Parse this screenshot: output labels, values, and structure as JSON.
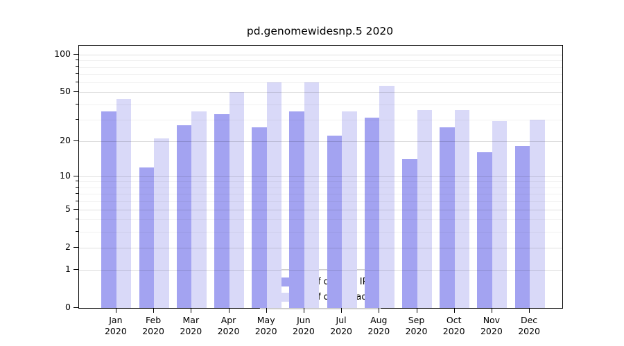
{
  "title": "pd.genomewidesnp.5 2020",
  "chart_data": {
    "type": "bar",
    "title": "pd.genomewidesnp.5 2020",
    "scale": "log1p",
    "categories": [
      "Jan 2020",
      "Feb 2020",
      "Mar 2020",
      "Apr 2020",
      "May 2020",
      "Jun 2020",
      "Jul 2020",
      "Aug 2020",
      "Sep 2020",
      "Oct 2020",
      "Nov 2020",
      "Dec 2020"
    ],
    "series": [
      {
        "name": "Nb of distinct IPs",
        "color": "#a3a3f1",
        "values": [
          35,
          12,
          27,
          33,
          26,
          35,
          22,
          31,
          14,
          26,
          16,
          18
        ]
      },
      {
        "name": "Nb of downloads",
        "color": "#d9d9f8",
        "values": [
          44,
          21,
          35,
          50,
          60,
          60,
          35,
          56,
          36,
          36,
          29,
          30
        ]
      }
    ],
    "xlabel": "",
    "ylabel": "",
    "yticks": [
      0,
      1,
      2,
      5,
      10,
      20,
      50,
      100
    ],
    "ylim": [
      0,
      118
    ],
    "grid": "on",
    "legend_position": "lower center"
  }
}
